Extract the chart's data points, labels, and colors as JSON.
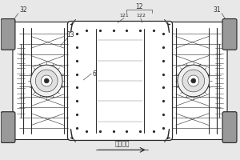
{
  "bg_color": "#e8e8e8",
  "line_color": "#2a2a2a",
  "white": "#ffffff",
  "gray_tire": "#888888",
  "gray_mid": "#bbbbbb",
  "arrow_text": "车头方向",
  "label_12": "12",
  "label_121": "121",
  "label_122": "122",
  "label_13": "13",
  "label_6": "6",
  "label_32": "32",
  "label_31": "31",
  "font_size": 5.5,
  "lw_main": 0.7,
  "lw_thin": 0.4
}
